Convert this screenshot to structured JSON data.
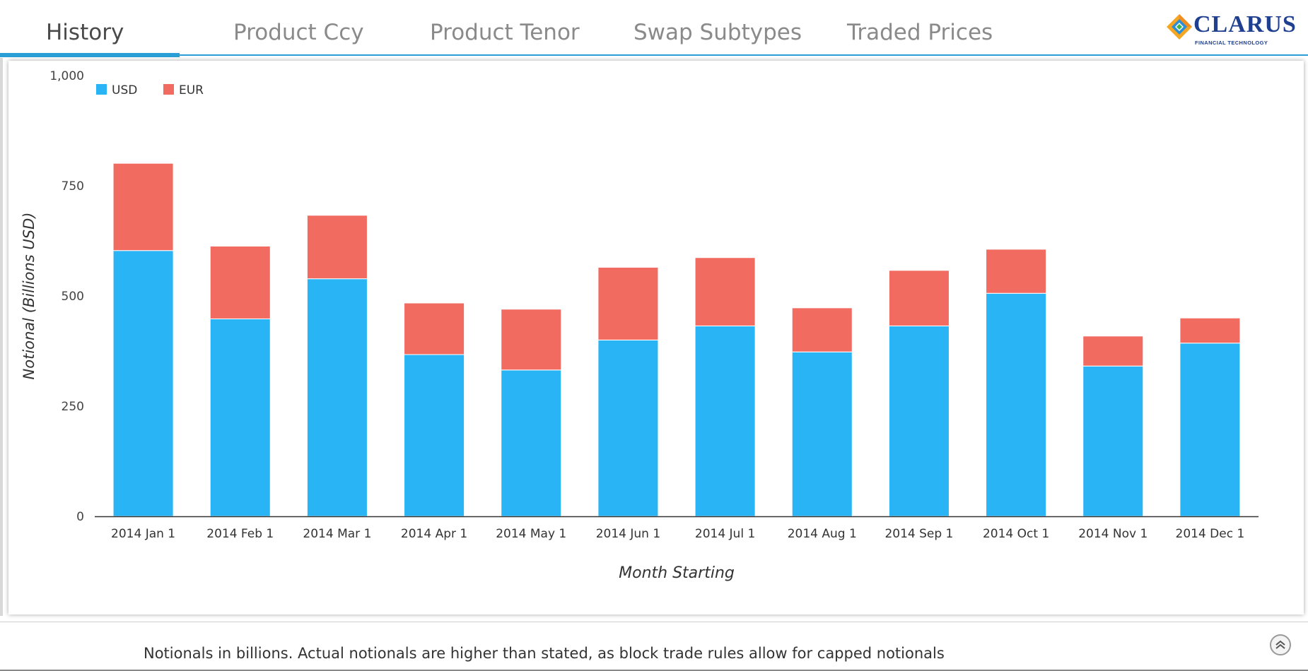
{
  "tabs": [
    {
      "label": "History",
      "active": true
    },
    {
      "label": "Product Ccy",
      "active": false
    },
    {
      "label": "Product Tenor",
      "active": false
    },
    {
      "label": "Swap Subtypes",
      "active": false
    },
    {
      "label": "Traded Prices",
      "active": false
    }
  ],
  "logo": {
    "name": "CLARUS",
    "subtitle": "FINANCIAL TECHNOLOGY"
  },
  "colors": {
    "accent": "#2a9fd6",
    "usd": "#29b5f5",
    "eur": "#f26b61",
    "logo": "#1f3f8f"
  },
  "footer": {
    "note": "Notionals in billions. Actual notionals are higher than stated, as block trade rules allow for capped notionals"
  },
  "chart_data": {
    "type": "bar",
    "stacked": true,
    "categories": [
      "2014 Jan 1",
      "2014 Feb 1",
      "2014 Mar 1",
      "2014 Apr 1",
      "2014 May 1",
      "2014 Jun 1",
      "2014 Jul 1",
      "2014 Aug 1",
      "2014 Sep 1",
      "2014 Oct 1",
      "2014 Nov 1",
      "2014 Dec 1"
    ],
    "series": [
      {
        "name": "USD",
        "color": "#29b5f5",
        "values": [
          603,
          448,
          539,
          367,
          332,
          400,
          432,
          373,
          432,
          506,
          341,
          393
        ]
      },
      {
        "name": "EUR",
        "color": "#f26b61",
        "values": [
          198,
          165,
          144,
          117,
          138,
          165,
          155,
          100,
          126,
          100,
          68,
          57
        ]
      }
    ],
    "title": "",
    "xlabel": "Month Starting",
    "ylabel": "Notional (Billions USD)",
    "ylim": [
      0,
      1000
    ],
    "yticks": [
      0,
      250,
      500,
      750,
      1000
    ],
    "ytick_labels": [
      "0",
      "250",
      "500",
      "750",
      "1,000"
    ],
    "grid": false,
    "legend": "top-left"
  }
}
